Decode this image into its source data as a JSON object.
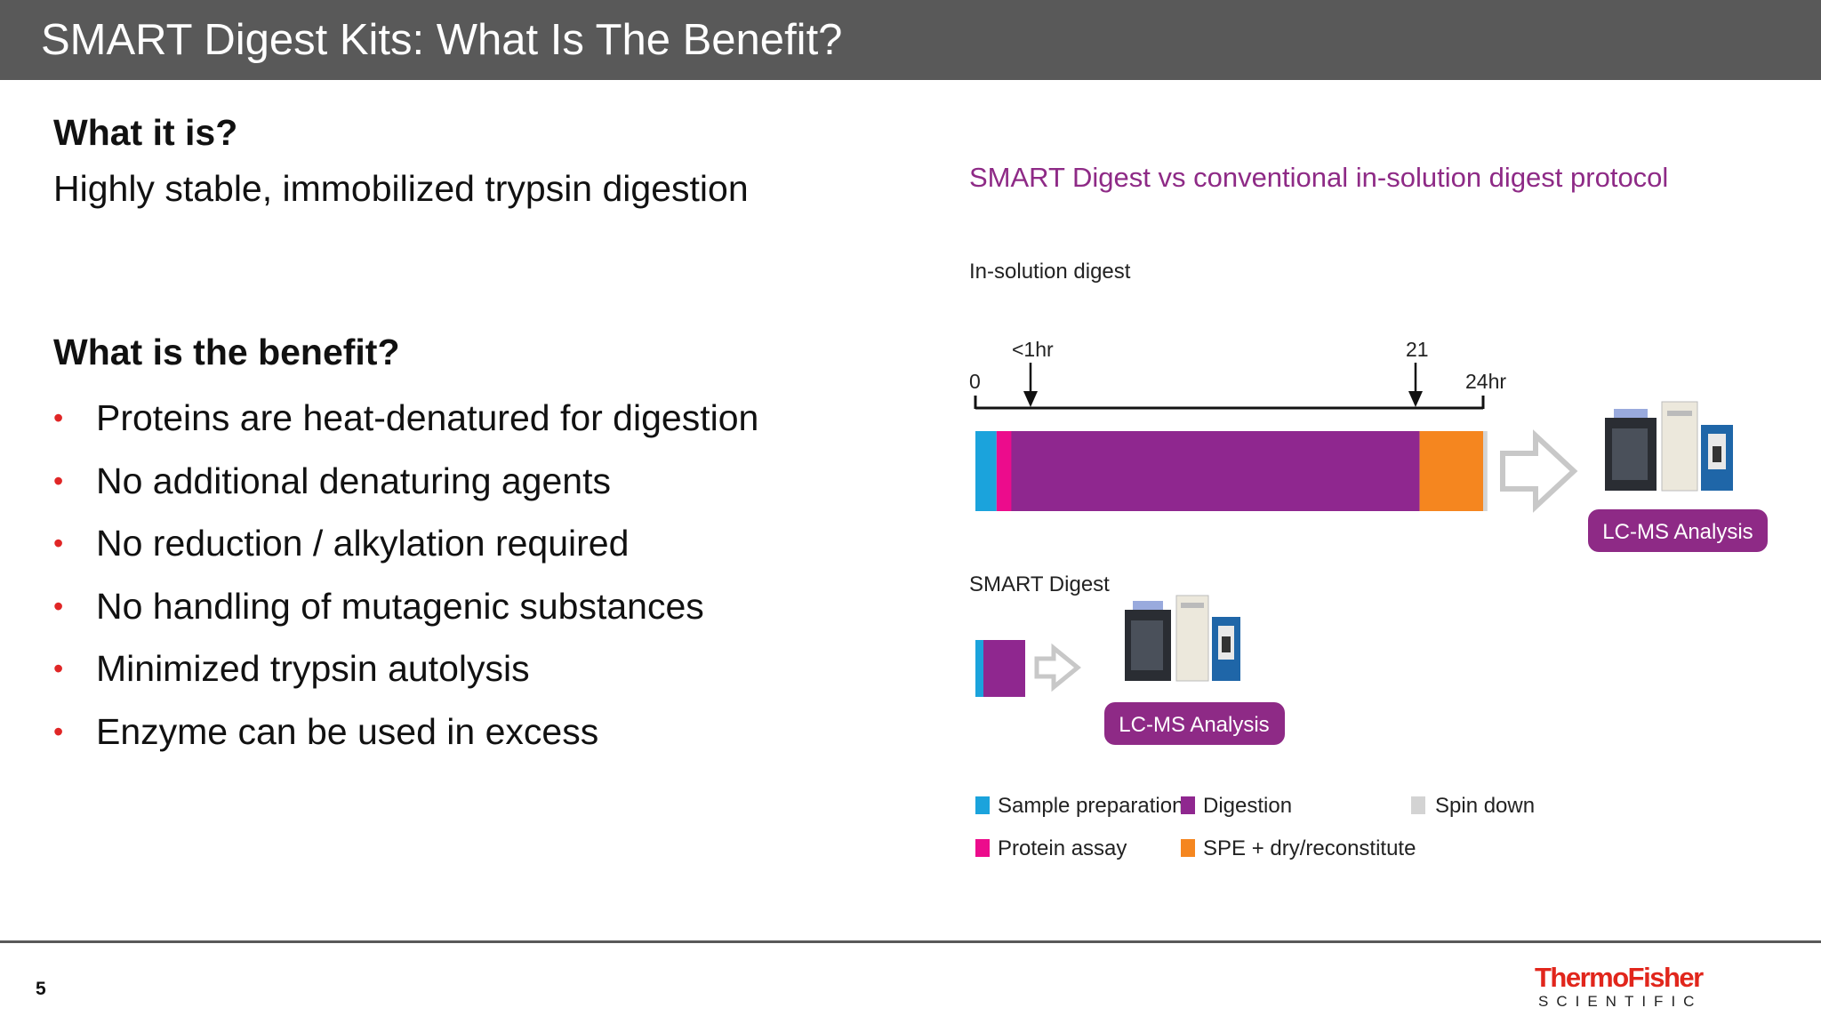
{
  "slide": {
    "title": "SMART Digest Kits: What Is The Benefit?",
    "page_number": "5"
  },
  "left": {
    "what_heading": "What it is?",
    "what_text": "Highly stable, immobilized trypsin digestion",
    "benefit_heading": "What is the benefit?",
    "bullets": [
      "Proteins are heat-denatured for digestion",
      "No additional denaturing agents",
      "No reduction / alkylation required",
      "No handling of mutagenic substances",
      "Minimized trypsin autolysis",
      "Enzyme can be used in excess"
    ],
    "bullet_color": "#e02626"
  },
  "diagram": {
    "title": "SMART Digest vs conventional in-solution digest protocol",
    "in_solution_label": "In-solution digest",
    "smart_label": "SMART Digest",
    "timeline": {
      "start_label": "0",
      "marker1_label": "<1hr",
      "marker2_label": "21",
      "end_label": "24hr"
    },
    "lcms_label": "LC-MS Analysis",
    "colors": {
      "sample_preparation": "#1ba3dc",
      "protein_assay": "#ec0c8c",
      "digestion": "#8f278f",
      "spe": "#f5861f",
      "spin_down": "#d3d3d3",
      "pill": "#8e2a86",
      "title": "#8e2a86"
    },
    "legend": [
      {
        "name": "Sample preparation",
        "color": "#1ba3dc"
      },
      {
        "name": "Digestion",
        "color": "#8f278f"
      },
      {
        "name": "Spin down",
        "color": "#d3d3d3"
      },
      {
        "name": "Protein assay",
        "color": "#ec0c8c"
      },
      {
        "name": "SPE + dry/reconstitute",
        "color": "#f5861f"
      }
    ],
    "in_solution_segments": [
      {
        "name": "Sample preparation",
        "start": 0,
        "end": 1,
        "color": "#1ba3dc"
      },
      {
        "name": "Protein assay",
        "start": 1,
        "end": 1.7,
        "color": "#ec0c8c"
      },
      {
        "name": "Digestion",
        "start": 1.7,
        "end": 21,
        "color": "#8f278f"
      },
      {
        "name": "SPE + dry/reconstitute",
        "start": 21,
        "end": 24,
        "color": "#f5861f"
      },
      {
        "name": "Spin down",
        "start": 24,
        "end": 24.2,
        "color": "#d3d3d3"
      }
    ]
  },
  "logo": {
    "line1": "ThermoFisher",
    "line2": "SCIENTIFIC",
    "color": "#e1261c"
  }
}
